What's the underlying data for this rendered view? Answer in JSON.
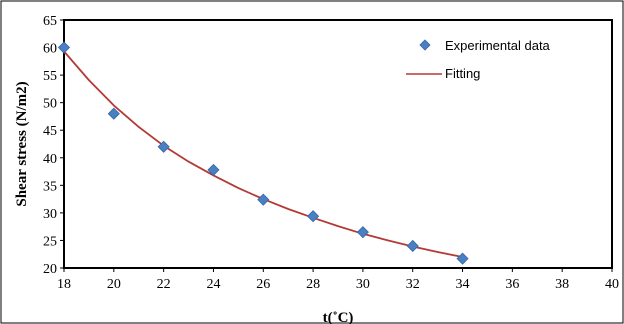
{
  "chart_data": {
    "type": "scatter",
    "xlabel": "t(˚C)",
    "ylabel": "Shear stress (N/m2)",
    "xlim": [
      18,
      40
    ],
    "ylim": [
      20,
      65
    ],
    "x_ticks": [
      "18",
      "20",
      "22",
      "24",
      "26",
      "28",
      "30",
      "32",
      "34",
      "36",
      "38",
      "40"
    ],
    "y_ticks": [
      "20",
      "25",
      "30",
      "35",
      "40",
      "45",
      "50",
      "55",
      "60",
      "65"
    ],
    "grid": false,
    "legend_position": "top-right",
    "series": [
      {
        "name": "Experimental data",
        "kind": "markers",
        "marker": "diamond",
        "color": "#4a7fc1",
        "x": [
          18,
          20,
          22,
          24,
          26,
          28,
          30,
          32,
          34
        ],
        "y": [
          60,
          48,
          42,
          37.8,
          32.4,
          29.4,
          26.5,
          24,
          21.7
        ]
      },
      {
        "name": "Fitting",
        "kind": "line",
        "color": "#b33a36",
        "x": [
          18,
          19,
          20,
          21,
          22,
          23,
          24,
          25,
          26,
          27,
          28,
          29,
          30,
          31,
          32,
          33,
          34
        ],
        "y": [
          59.3,
          54.1,
          49.5,
          45.6,
          42.2,
          39.3,
          36.8,
          34.5,
          32.5,
          30.7,
          29.1,
          27.6,
          26.2,
          25,
          23.9,
          22.9,
          22
        ]
      }
    ]
  }
}
